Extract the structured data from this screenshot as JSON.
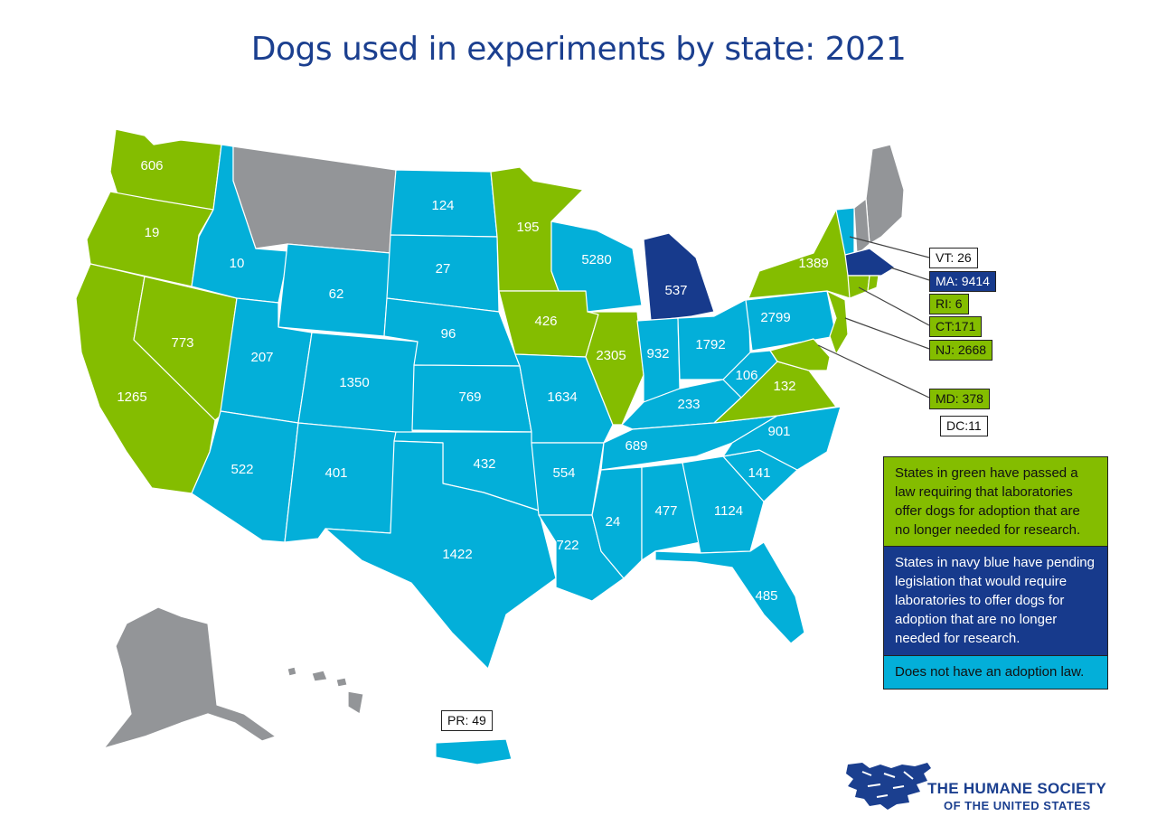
{
  "title": "Dogs used in experiments by state: 2021",
  "colors": {
    "law": "#84bd00",
    "pending": "#173a8c",
    "no_law": "#03afd9",
    "no_data": "#939598"
  },
  "states": [
    {
      "id": "WA",
      "value": "606",
      "status": "law"
    },
    {
      "id": "OR",
      "value": "19",
      "status": "law"
    },
    {
      "id": "CA",
      "value": "1265",
      "status": "law"
    },
    {
      "id": "NV",
      "value": "773",
      "status": "law"
    },
    {
      "id": "ID",
      "value": "10",
      "status": "no_law"
    },
    {
      "id": "MT",
      "value": "",
      "status": "no_data"
    },
    {
      "id": "WY",
      "value": "62",
      "status": "no_law"
    },
    {
      "id": "UT",
      "value": "207",
      "status": "no_law"
    },
    {
      "id": "AZ",
      "value": "522",
      "status": "no_law"
    },
    {
      "id": "CO",
      "value": "1350",
      "status": "no_law"
    },
    {
      "id": "NM",
      "value": "401",
      "status": "no_law"
    },
    {
      "id": "ND",
      "value": "124",
      "status": "no_law"
    },
    {
      "id": "SD",
      "value": "27",
      "status": "no_law"
    },
    {
      "id": "NE",
      "value": "96",
      "status": "no_law"
    },
    {
      "id": "KS",
      "value": "769",
      "status": "no_law"
    },
    {
      "id": "OK",
      "value": "432",
      "status": "no_law"
    },
    {
      "id": "TX",
      "value": "1422",
      "status": "no_law"
    },
    {
      "id": "MN",
      "value": "195",
      "status": "law"
    },
    {
      "id": "IA",
      "value": "426",
      "status": "law"
    },
    {
      "id": "MO",
      "value": "1634",
      "status": "no_law"
    },
    {
      "id": "AR",
      "value": "554",
      "status": "no_law"
    },
    {
      "id": "LA",
      "value": "722",
      "status": "no_law"
    },
    {
      "id": "WI",
      "value": "5280",
      "status": "no_law"
    },
    {
      "id": "IL",
      "value": "2305",
      "status": "law"
    },
    {
      "id": "MI",
      "value": "537",
      "status": "pending"
    },
    {
      "id": "IN",
      "value": "932",
      "status": "no_law"
    },
    {
      "id": "OH",
      "value": "1792",
      "status": "no_law"
    },
    {
      "id": "KY",
      "value": "233",
      "status": "no_law"
    },
    {
      "id": "TN",
      "value": "689",
      "status": "no_law"
    },
    {
      "id": "MS",
      "value": "24",
      "status": "no_law"
    },
    {
      "id": "AL",
      "value": "477",
      "status": "no_law"
    },
    {
      "id": "GA",
      "value": "1124",
      "status": "no_law"
    },
    {
      "id": "FL",
      "value": "485",
      "status": "no_law"
    },
    {
      "id": "SC",
      "value": "141",
      "status": "no_law"
    },
    {
      "id": "NC",
      "value": "901",
      "status": "no_law"
    },
    {
      "id": "VA",
      "value": "132",
      "status": "law"
    },
    {
      "id": "WV",
      "value": "106",
      "status": "no_law"
    },
    {
      "id": "PA",
      "value": "2799",
      "status": "no_law"
    },
    {
      "id": "NY",
      "value": "1389",
      "status": "law"
    },
    {
      "id": "ME",
      "value": "",
      "status": "no_data"
    },
    {
      "id": "AK",
      "value": "",
      "status": "no_data"
    }
  ],
  "callouts": [
    {
      "id": "VT",
      "label": "VT: 26",
      "style": "white"
    },
    {
      "id": "MA",
      "label": "MA: 9414",
      "style": "navy"
    },
    {
      "id": "RI",
      "label": "RI: 6",
      "style": "green"
    },
    {
      "id": "CT",
      "label": "CT:171",
      "style": "green"
    },
    {
      "id": "NJ",
      "label": "NJ: 2668",
      "style": "green"
    },
    {
      "id": "MD",
      "label": "MD: 378",
      "style": "green"
    },
    {
      "id": "DC",
      "label": "DC:11",
      "style": "white"
    },
    {
      "id": "PR",
      "label": "PR: 49",
      "style": "white"
    }
  ],
  "legend": [
    {
      "status": "law",
      "text": "States in green have passed a law requiring that laboratories offer dogs for adoption that are no longer needed for research."
    },
    {
      "status": "pending",
      "text": "States in navy blue have pending legislation that would require laboratories to offer dogs for adoption that are no longer needed for research."
    },
    {
      "status": "no_law",
      "text": "Does not have an adoption law."
    }
  ],
  "logo": {
    "line1": "THE HUMANE SOCIETY",
    "line2": "OF THE UNITED STATES"
  }
}
